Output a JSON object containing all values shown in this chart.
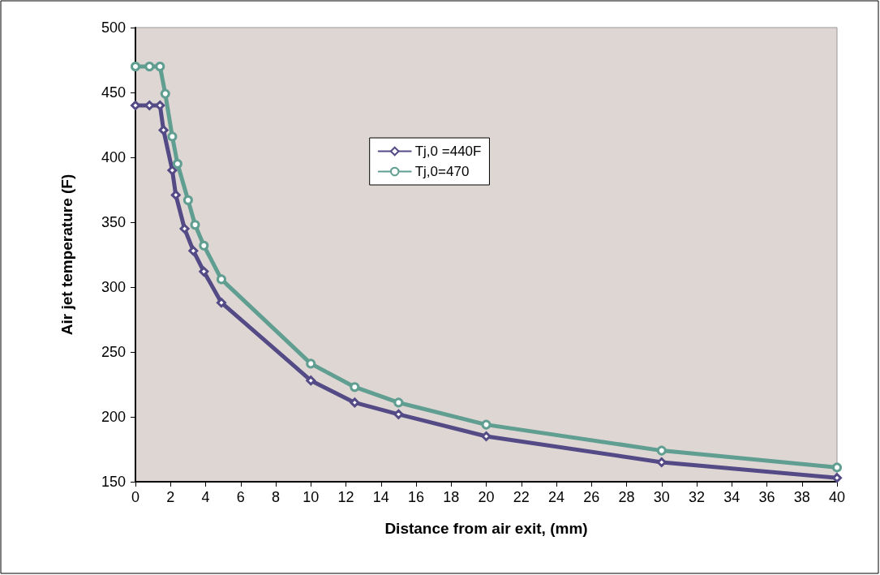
{
  "chart_data": {
    "type": "line",
    "xlabel": "Distance from air exit, (mm)",
    "ylabel": "Air jet temperature (F)",
    "xlim": [
      0,
      40
    ],
    "xticks": [
      0,
      2,
      4,
      6,
      8,
      10,
      12,
      14,
      16,
      18,
      20,
      22,
      24,
      26,
      28,
      30,
      32,
      34,
      36,
      38,
      40
    ],
    "ylim": [
      150,
      500
    ],
    "yticks": [
      150,
      200,
      250,
      300,
      350,
      400,
      450,
      500
    ],
    "grid": false,
    "legend": "top",
    "line_style": "solid",
    "series": [
      {
        "name": "Tj,0 =440F",
        "color": "#534a86",
        "marker": "diamond",
        "x": [
          0,
          0.8,
          1.4,
          1.6,
          2.1,
          2.3,
          2.8,
          3.3,
          3.9,
          4.9,
          10,
          12.5,
          15,
          20,
          30,
          40
        ],
        "values": [
          440,
          440,
          440,
          421,
          390,
          371,
          345,
          328,
          312,
          288,
          228,
          211,
          202,
          185,
          165,
          153
        ]
      },
      {
        "name": "Tj,0=470",
        "color": "#5f9e90",
        "marker": "circle",
        "x": [
          0,
          0.8,
          1.4,
          1.7,
          2.1,
          2.4,
          3,
          3.4,
          3.9,
          4.9,
          10,
          12.5,
          15,
          20,
          30,
          40
        ],
        "values": [
          470,
          470,
          470,
          449,
          416,
          395,
          367,
          348,
          332,
          306,
          241,
          223,
          211,
          194,
          174,
          161
        ]
      }
    ]
  }
}
